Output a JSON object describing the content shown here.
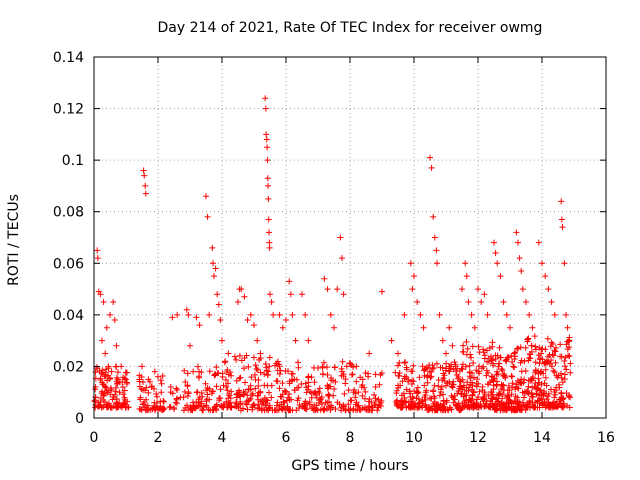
{
  "chart_data": {
    "type": "scatter",
    "title": "Day 214 of 2021, Rate Of TEC Index for receiver owmg",
    "xlabel": "GPS time / hours",
    "ylabel": "ROTI / TECUs",
    "xlim": [
      0,
      16
    ],
    "ylim": [
      0,
      0.14
    ],
    "xticks": [
      0,
      2,
      4,
      6,
      8,
      10,
      12,
      14,
      16
    ],
    "xtick_labels": [
      "0",
      "2",
      "4",
      "6",
      "8",
      "10",
      "12",
      "14",
      "16"
    ],
    "yticks": [
      0,
      0.02,
      0.04,
      0.06,
      0.08,
      0.1,
      0.12,
      0.14
    ],
    "ytick_labels": [
      "0",
      "0.02",
      "0.04",
      "0.06",
      "0.08",
      "0.1",
      "0.12",
      "0.14"
    ],
    "grid": true,
    "marker": "+",
    "color": "#ff0000",
    "series": [
      {
        "name": "ROTI",
        "points": [
          [
            0.05,
            0.012
          ],
          [
            0.1,
            0.065
          ],
          [
            0.12,
            0.062
          ],
          [
            0.15,
            0.049
          ],
          [
            0.2,
            0.048
          ],
          [
            0.25,
            0.03
          ],
          [
            0.3,
            0.045
          ],
          [
            0.35,
            0.025
          ],
          [
            0.4,
            0.035
          ],
          [
            0.45,
            0.02
          ],
          [
            0.5,
            0.04
          ],
          [
            0.55,
            0.018
          ],
          [
            0.6,
            0.045
          ],
          [
            0.65,
            0.038
          ],
          [
            0.7,
            0.028
          ],
          [
            0.75,
            0.015
          ],
          [
            0.8,
            0.01
          ],
          [
            0.85,
            0.02
          ],
          [
            0.9,
            0.012
          ],
          [
            1.0,
            0.015
          ],
          [
            1.55,
            0.096
          ],
          [
            1.57,
            0.094
          ],
          [
            1.6,
            0.09
          ],
          [
            1.62,
            0.087
          ],
          [
            1.5,
            0.02
          ],
          [
            1.7,
            0.015
          ],
          [
            1.8,
            0.012
          ],
          [
            1.9,
            0.018
          ],
          [
            2.0,
            0.016
          ],
          [
            2.1,
            0.01
          ],
          [
            2.4,
            0.012
          ],
          [
            2.45,
            0.039
          ],
          [
            2.6,
            0.04
          ],
          [
            2.7,
            0.008
          ],
          [
            2.9,
            0.042
          ],
          [
            2.95,
            0.04
          ],
          [
            3.0,
            0.028
          ],
          [
            3.1,
            0.018
          ],
          [
            3.2,
            0.039
          ],
          [
            3.3,
            0.036
          ],
          [
            3.5,
            0.086
          ],
          [
            3.55,
            0.078
          ],
          [
            3.6,
            0.04
          ],
          [
            3.7,
            0.066
          ],
          [
            3.72,
            0.06
          ],
          [
            3.75,
            0.055
          ],
          [
            3.8,
            0.058
          ],
          [
            3.85,
            0.048
          ],
          [
            3.9,
            0.044
          ],
          [
            3.95,
            0.038
          ],
          [
            4.0,
            0.03
          ],
          [
            4.1,
            0.022
          ],
          [
            4.2,
            0.025
          ],
          [
            4.5,
            0.045
          ],
          [
            4.55,
            0.05
          ],
          [
            4.6,
            0.05
          ],
          [
            4.7,
            0.047
          ],
          [
            4.8,
            0.038
          ],
          [
            4.9,
            0.04
          ],
          [
            5.0,
            0.036
          ],
          [
            5.1,
            0.03
          ],
          [
            5.2,
            0.025
          ],
          [
            5.35,
            0.124
          ],
          [
            5.37,
            0.12
          ],
          [
            5.38,
            0.11
          ],
          [
            5.4,
            0.108
          ],
          [
            5.41,
            0.105
          ],
          [
            5.42,
            0.1
          ],
          [
            5.43,
            0.093
          ],
          [
            5.44,
            0.09
          ],
          [
            5.45,
            0.085
          ],
          [
            5.46,
            0.077
          ],
          [
            5.47,
            0.072
          ],
          [
            5.48,
            0.068
          ],
          [
            5.49,
            0.066
          ],
          [
            5.5,
            0.048
          ],
          [
            5.55,
            0.045
          ],
          [
            5.6,
            0.04
          ],
          [
            5.8,
            0.04
          ],
          [
            5.9,
            0.035
          ],
          [
            6.0,
            0.038
          ],
          [
            6.1,
            0.053
          ],
          [
            6.15,
            0.048
          ],
          [
            6.2,
            0.04
          ],
          [
            6.3,
            0.03
          ],
          [
            6.5,
            0.048
          ],
          [
            6.6,
            0.04
          ],
          [
            6.7,
            0.03
          ],
          [
            7.2,
            0.054
          ],
          [
            7.3,
            0.05
          ],
          [
            7.4,
            0.04
          ],
          [
            7.5,
            0.035
          ],
          [
            7.6,
            0.05
          ],
          [
            7.7,
            0.07
          ],
          [
            7.75,
            0.062
          ],
          [
            7.8,
            0.048
          ],
          [
            7.9,
            0.02
          ],
          [
            8.2,
            0.02
          ],
          [
            8.4,
            0.015
          ],
          [
            8.6,
            0.025
          ],
          [
            8.8,
            0.012
          ],
          [
            9.0,
            0.049
          ],
          [
            9.3,
            0.03
          ],
          [
            9.5,
            0.025
          ],
          [
            9.7,
            0.04
          ],
          [
            9.9,
            0.06
          ],
          [
            9.95,
            0.05
          ],
          [
            10.0,
            0.055
          ],
          [
            10.1,
            0.045
          ],
          [
            10.2,
            0.04
          ],
          [
            10.3,
            0.035
          ],
          [
            10.5,
            0.101
          ],
          [
            10.55,
            0.097
          ],
          [
            10.6,
            0.078
          ],
          [
            10.65,
            0.07
          ],
          [
            10.7,
            0.065
          ],
          [
            10.72,
            0.06
          ],
          [
            10.8,
            0.04
          ],
          [
            10.9,
            0.03
          ],
          [
            11.0,
            0.025
          ],
          [
            11.1,
            0.035
          ],
          [
            11.2,
            0.028
          ],
          [
            11.3,
            0.02
          ],
          [
            11.5,
            0.05
          ],
          [
            11.6,
            0.06
          ],
          [
            11.65,
            0.055
          ],
          [
            11.7,
            0.045
          ],
          [
            11.8,
            0.04
          ],
          [
            11.9,
            0.035
          ],
          [
            12.0,
            0.05
          ],
          [
            12.1,
            0.045
          ],
          [
            12.2,
            0.048
          ],
          [
            12.3,
            0.04
          ],
          [
            12.5,
            0.068
          ],
          [
            12.55,
            0.064
          ],
          [
            12.6,
            0.06
          ],
          [
            12.7,
            0.055
          ],
          [
            12.8,
            0.045
          ],
          [
            12.9,
            0.04
          ],
          [
            13.0,
            0.035
          ],
          [
            13.2,
            0.072
          ],
          [
            13.25,
            0.068
          ],
          [
            13.3,
            0.062
          ],
          [
            13.35,
            0.057
          ],
          [
            13.4,
            0.05
          ],
          [
            13.5,
            0.045
          ],
          [
            13.6,
            0.04
          ],
          [
            13.7,
            0.035
          ],
          [
            13.9,
            0.068
          ],
          [
            14.0,
            0.06
          ],
          [
            14.1,
            0.055
          ],
          [
            14.2,
            0.05
          ],
          [
            14.3,
            0.045
          ],
          [
            14.4,
            0.04
          ],
          [
            14.6,
            0.084
          ],
          [
            14.62,
            0.077
          ],
          [
            14.64,
            0.074
          ],
          [
            14.7,
            0.06
          ],
          [
            14.75,
            0.04
          ],
          [
            14.8,
            0.035
          ],
          [
            14.85,
            0.03
          ]
        ],
        "dense_clusters": [
          {
            "x_range": [
              0.0,
              1.1
            ],
            "y_range": [
              0.004,
              0.02
            ],
            "count": 120
          },
          {
            "x_range": [
              1.4,
              2.2
            ],
            "y_range": [
              0.003,
              0.017
            ],
            "count": 60
          },
          {
            "x_range": [
              2.35,
              2.6
            ],
            "y_range": [
              0.003,
              0.012
            ],
            "count": 12
          },
          {
            "x_range": [
              2.8,
              3.9
            ],
            "y_range": [
              0.003,
              0.02
            ],
            "count": 80
          },
          {
            "x_range": [
              3.9,
              4.3
            ],
            "y_range": [
              0.004,
              0.022
            ],
            "count": 40
          },
          {
            "x_range": [
              4.4,
              5.8
            ],
            "y_range": [
              0.003,
              0.025
            ],
            "count": 130
          },
          {
            "x_range": [
              5.8,
              7.0
            ],
            "y_range": [
              0.003,
              0.022
            ],
            "count": 90
          },
          {
            "x_range": [
              7.0,
              8.2
            ],
            "y_range": [
              0.003,
              0.022
            ],
            "count": 90
          },
          {
            "x_range": [
              8.2,
              9.0
            ],
            "y_range": [
              0.003,
              0.018
            ],
            "count": 50
          },
          {
            "x_range": [
              9.4,
              10.4
            ],
            "y_range": [
              0.004,
              0.022
            ],
            "count": 110
          },
          {
            "x_range": [
              10.4,
              11.5
            ],
            "y_range": [
              0.003,
              0.022
            ],
            "count": 140
          },
          {
            "x_range": [
              11.5,
              12.5
            ],
            "y_range": [
              0.004,
              0.03
            ],
            "count": 160
          },
          {
            "x_range": [
              12.5,
              13.5
            ],
            "y_range": [
              0.003,
              0.028
            ],
            "count": 170
          },
          {
            "x_range": [
              13.5,
              14.9
            ],
            "y_range": [
              0.004,
              0.032
            ],
            "count": 220
          }
        ]
      }
    ]
  }
}
